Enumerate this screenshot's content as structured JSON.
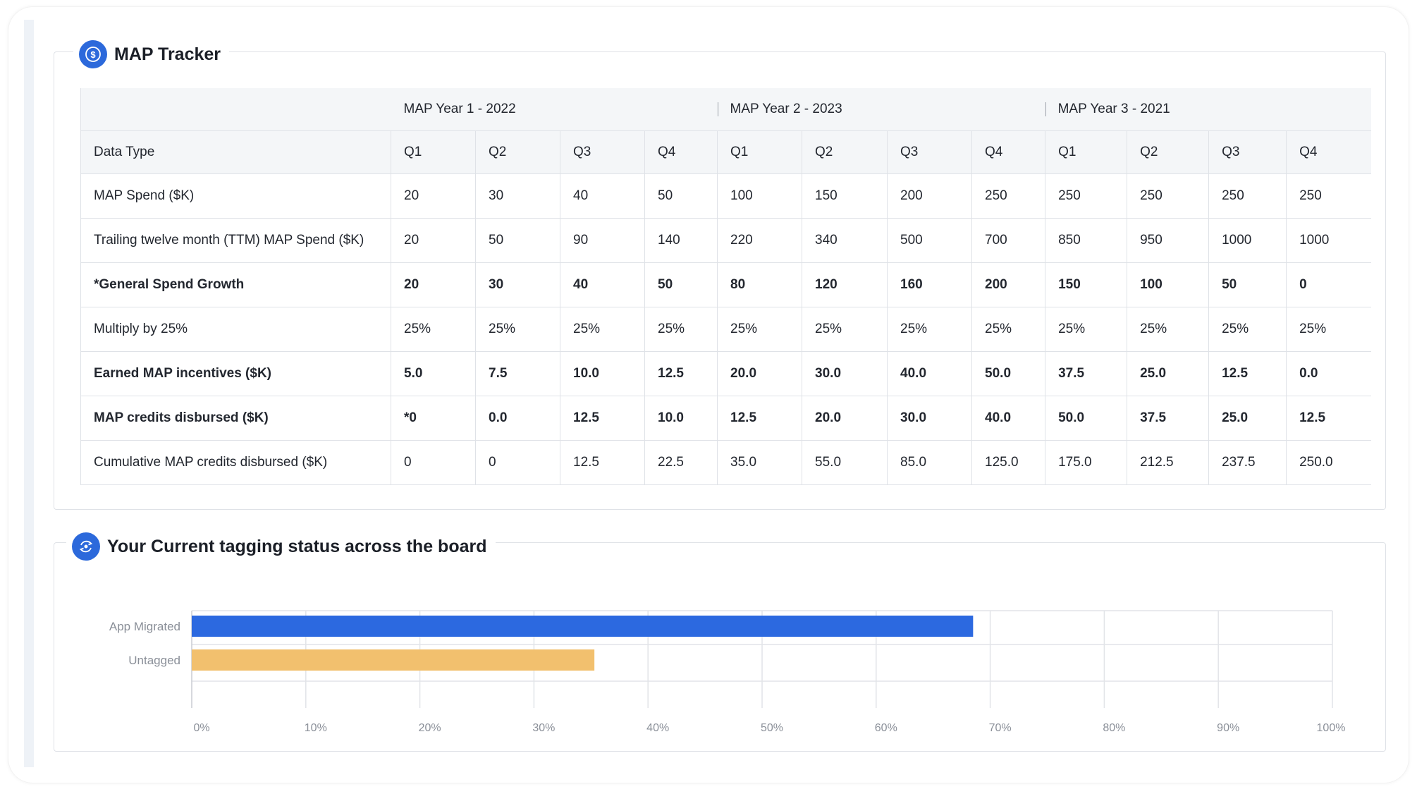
{
  "map_tracker": {
    "title": "MAP Tracker",
    "icon": "dollar-coin-icon",
    "year_groups": [
      {
        "label": "MAP Year 1 - 2022",
        "span": 4
      },
      {
        "label": "MAP Year 2 - 2023",
        "span": 4
      },
      {
        "label": "MAP Year 3 - 2021",
        "span": 4
      }
    ],
    "header": {
      "data_type": "Data Type",
      "quarters": [
        "Q1",
        "Q2",
        "Q3",
        "Q4",
        "Q1",
        "Q2",
        "Q3",
        "Q4",
        "Q1",
        "Q2",
        "Q3",
        "Q4"
      ]
    },
    "rows": [
      {
        "label": "MAP Spend ($K)",
        "bold": false,
        "values": [
          "20",
          "30",
          "40",
          "50",
          "100",
          "150",
          "200",
          "250",
          "250",
          "250",
          "250",
          "250"
        ]
      },
      {
        "label": "Trailing twelve month (TTM) MAP Spend ($K)",
        "bold": false,
        "values": [
          "20",
          "50",
          "90",
          "140",
          "220",
          "340",
          "500",
          "700",
          "850",
          "950",
          "1000",
          "1000"
        ]
      },
      {
        "label": "*General Spend Growth",
        "bold": true,
        "values": [
          "20",
          "30",
          "40",
          "50",
          "80",
          "120",
          "160",
          "200",
          "150",
          "100",
          "50",
          "0"
        ]
      },
      {
        "label": "Multiply by 25%",
        "bold": false,
        "values": [
          "25%",
          "25%",
          "25%",
          "25%",
          "25%",
          "25%",
          "25%",
          "25%",
          "25%",
          "25%",
          "25%",
          "25%"
        ]
      },
      {
        "label": "Earned MAP incentives ($K)",
        "bold": true,
        "values": [
          "5.0",
          "7.5",
          "10.0",
          "12.5",
          "20.0",
          "30.0",
          "40.0",
          "50.0",
          "37.5",
          "25.0",
          "12.5",
          "0.0"
        ]
      },
      {
        "label": "MAP credits disbursed ($K)",
        "bold": true,
        "values": [
          "*0",
          "0.0",
          "12.5",
          "10.0",
          "12.5",
          "20.0",
          "30.0",
          "40.0",
          "50.0",
          "37.5",
          "25.0",
          "12.5"
        ]
      },
      {
        "label": "Cumulative MAP credits disbursed ($K)",
        "bold": false,
        "values": [
          "0",
          "0",
          "12.5",
          "22.5",
          "35.0",
          "55.0",
          "85.0",
          "125.0",
          "175.0",
          "212.5",
          "237.5",
          "250.0"
        ]
      }
    ]
  },
  "tagging_status": {
    "title": "Your Current tagging status across the board",
    "icon": "refresh-tag-icon"
  },
  "chart_data": {
    "type": "bar",
    "orientation": "horizontal",
    "categories": [
      "App Migrated",
      "Untagged"
    ],
    "values": [
      68.5,
      35.3
    ],
    "colors": [
      "#2c69e0",
      "#f2c06e"
    ],
    "xlim": [
      0,
      100
    ],
    "x_ticks": [
      "0%",
      "10%",
      "20%",
      "30%",
      "40%",
      "50%",
      "60%",
      "70%",
      "80%",
      "90%",
      "100%"
    ],
    "grid": true
  }
}
